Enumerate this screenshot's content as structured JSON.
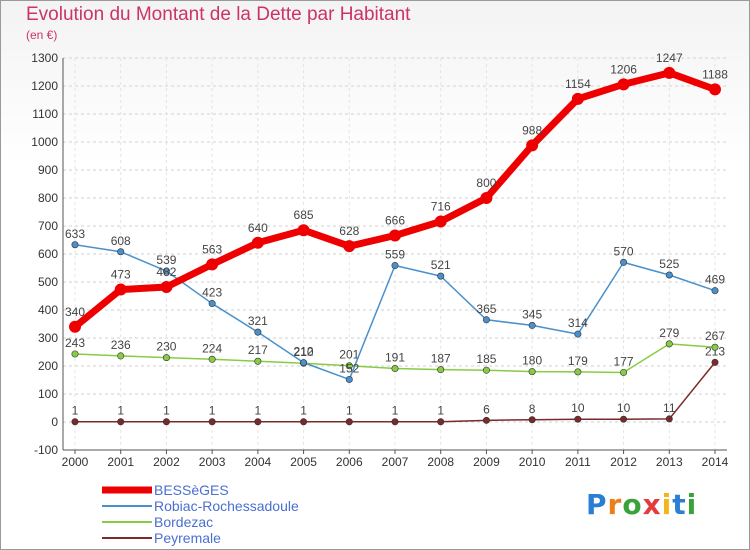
{
  "title": "Evolution du Montant de la Dette par Habitant",
  "unit": "(en €)",
  "logo": "Proxiti",
  "chart_data": {
    "type": "line",
    "x": [
      "2000",
      "2001",
      "2002",
      "2003",
      "2004",
      "2005",
      "2006",
      "2007",
      "2008",
      "2009",
      "2010",
      "2011",
      "2012",
      "2013",
      "2014"
    ],
    "ylim": [
      -100,
      1300
    ],
    "yticks": [
      -100,
      0,
      100,
      200,
      300,
      400,
      500,
      600,
      700,
      800,
      900,
      1000,
      1100,
      1200,
      1300
    ],
    "grid": true,
    "legend_position": "bottom-left",
    "series": [
      {
        "name": "BESSèGES",
        "color": "#ee0000",
        "values": [
          340,
          473,
          482,
          563,
          640,
          685,
          628,
          666,
          716,
          800,
          988,
          1154,
          1206,
          1247,
          1188
        ]
      },
      {
        "name": "Robiac-Rochessadoule",
        "color": "#4a90cc",
        "values": [
          633,
          608,
          539,
          423,
          321,
          212,
          152,
          559,
          521,
          365,
          345,
          314,
          570,
          525,
          469
        ]
      },
      {
        "name": "Bordezac",
        "color": "#88cc44",
        "values": [
          243,
          236,
          230,
          224,
          217,
          210,
          201,
          191,
          187,
          185,
          180,
          179,
          177,
          279,
          267
        ]
      },
      {
        "name": "Peyremale",
        "color": "#7a2a2a",
        "values": [
          1,
          1,
          1,
          1,
          1,
          1,
          1,
          1,
          1,
          6,
          8,
          10,
          10,
          11,
          213
        ]
      }
    ]
  }
}
